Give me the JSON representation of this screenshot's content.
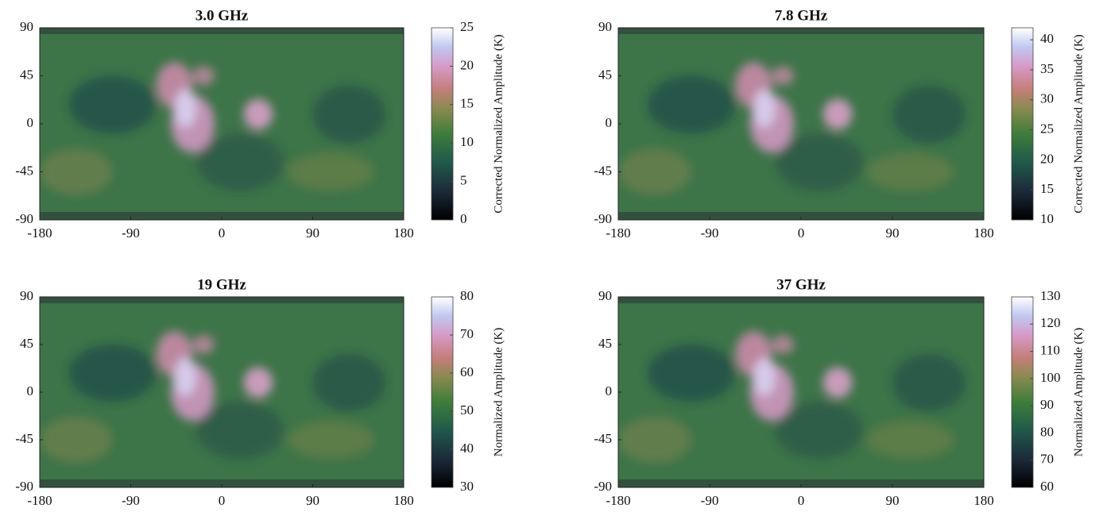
{
  "chart_data": [
    {
      "type": "heatmap",
      "title": "3.0 GHz",
      "xlim": [
        -180,
        180
      ],
      "xticks": [
        -180,
        -90,
        0,
        90,
        180
      ],
      "ylim": [
        -90,
        90
      ],
      "yticks": [
        -90,
        -45,
        0,
        45,
        90
      ],
      "colorbar": {
        "label": "Corrected Normalized Amplitude (K)",
        "lim": [
          0,
          25
        ],
        "ticks": [
          0,
          5,
          10,
          15,
          20,
          25
        ]
      }
    },
    {
      "type": "heatmap",
      "title": "7.8 GHz",
      "xlim": [
        -180,
        180
      ],
      "xticks": [
        -180,
        -90,
        0,
        90,
        180
      ],
      "ylim": [
        -90,
        90
      ],
      "yticks": [
        -90,
        -45,
        0,
        45,
        90
      ],
      "colorbar": {
        "label": "Corrected Normalized Amplitude (K)",
        "lim": [
          10,
          42
        ],
        "ticks": [
          10,
          15,
          20,
          25,
          30,
          35,
          40
        ]
      }
    },
    {
      "type": "heatmap",
      "title": "19 GHz",
      "xlim": [
        -180,
        180
      ],
      "xticks": [
        -180,
        -90,
        0,
        90,
        180
      ],
      "ylim": [
        -90,
        90
      ],
      "yticks": [
        -90,
        -45,
        0,
        45,
        90
      ],
      "colorbar": {
        "label": "Normalized Amplitude (K)",
        "lim": [
          30,
          80
        ],
        "ticks": [
          30,
          40,
          50,
          60,
          70,
          80
        ]
      }
    },
    {
      "type": "heatmap",
      "title": "37 GHz",
      "xlim": [
        -180,
        180
      ],
      "xticks": [
        -180,
        -90,
        0,
        90,
        180
      ],
      "ylim": [
        -90,
        90
      ],
      "yticks": [
        -90,
        -45,
        0,
        45,
        90
      ],
      "colorbar": {
        "label": "Normalized Amplitude (K)",
        "lim": [
          60,
          130
        ],
        "ticks": [
          60,
          70,
          80,
          90,
          100,
          110,
          120,
          130
        ]
      }
    }
  ]
}
